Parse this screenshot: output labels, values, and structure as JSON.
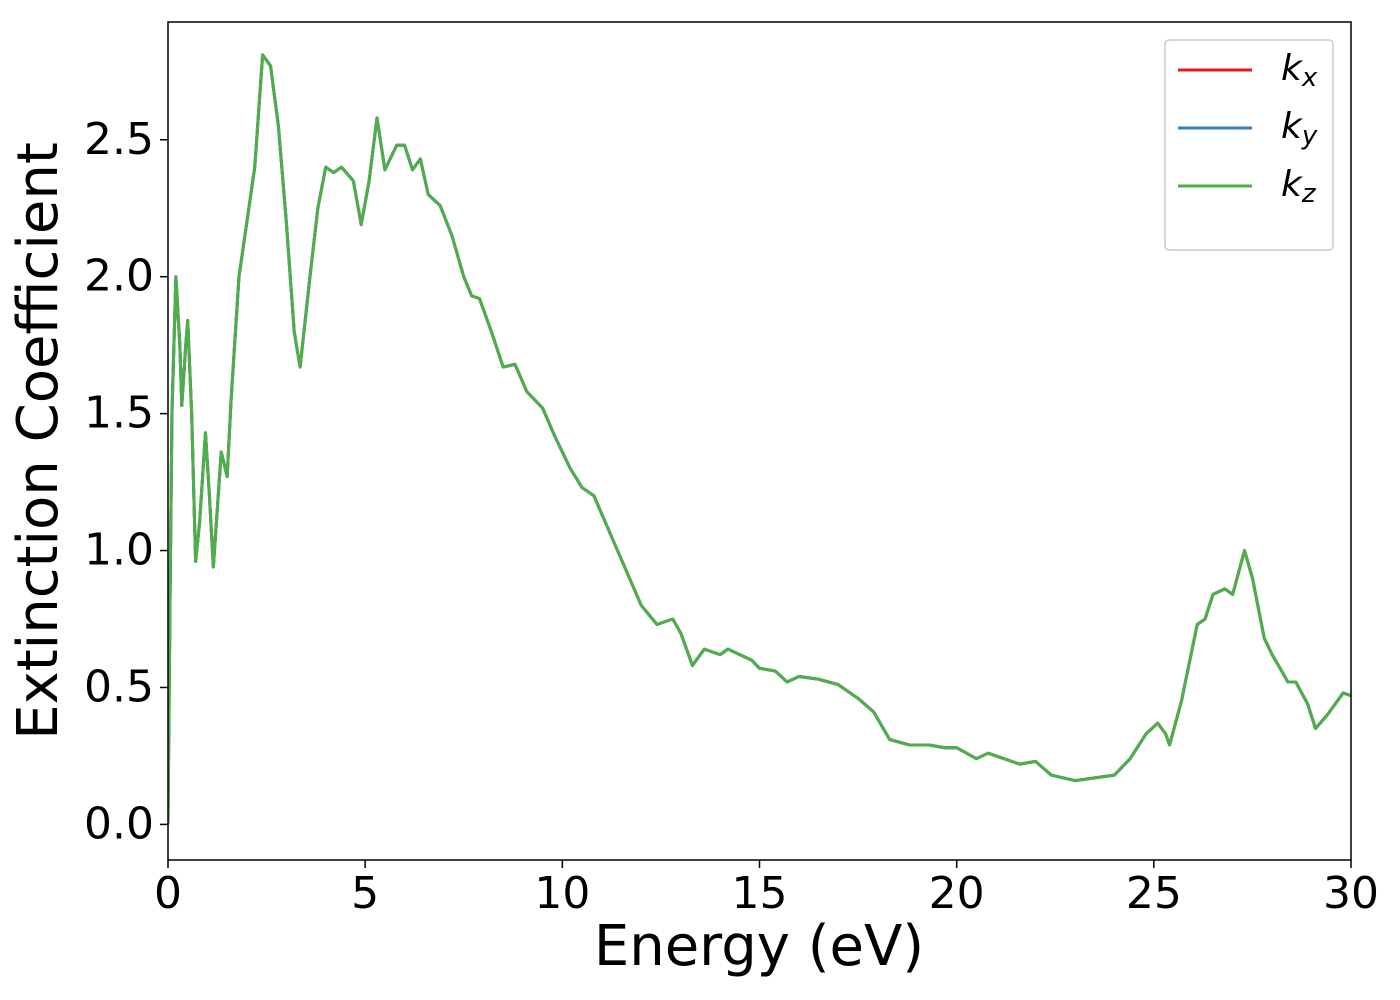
{
  "chart_data": {
    "type": "line",
    "xlabel": "Energy (eV)",
    "ylabel": "Extinction Coefficient",
    "x": [
      0,
      0.05,
      0.1,
      0.2,
      0.3,
      0.35,
      0.45,
      0.5,
      0.6,
      0.7,
      0.8,
      0.95,
      1.05,
      1.15,
      1.25,
      1.35,
      1.5,
      1.6,
      1.8,
      2.0,
      2.2,
      2.4,
      2.6,
      2.8,
      3.0,
      3.2,
      3.35,
      3.6,
      3.8,
      4.0,
      4.2,
      4.4,
      4.7,
      4.9,
      5.1,
      5.3,
      5.5,
      5.8,
      6.0,
      6.2,
      6.4,
      6.6,
      6.9,
      7.2,
      7.5,
      7.7,
      7.9,
      8.2,
      8.5,
      8.8,
      9.1,
      9.5,
      9.8,
      10.2,
      10.5,
      10.8,
      11.1,
      11.4,
      11.7,
      12.0,
      12.4,
      12.8,
      13.0,
      13.3,
      13.6,
      14.0,
      14.2,
      14.8,
      15.0,
      15.4,
      15.7,
      16.0,
      16.5,
      17.0,
      17.5,
      17.9,
      18.3,
      18.8,
      19.3,
      19.7,
      20.0,
      20.5,
      20.8,
      21.2,
      21.6,
      22.0,
      22.4,
      23.0,
      23.5,
      24.0,
      24.4,
      24.8,
      25.1,
      25.3,
      25.4,
      25.7,
      26.1,
      26.3,
      26.5,
      26.8,
      27.0,
      27.3,
      27.5,
      27.8,
      28.0,
      28.2,
      28.4,
      28.6,
      28.9,
      29.1,
      29.4,
      29.8,
      30.0
    ],
    "series": [
      {
        "name": "kx",
        "color": "#e41a1c",
        "values": [
          0,
          0.8,
          1.5,
          2.0,
          1.75,
          1.53,
          1.75,
          1.84,
          1.5,
          0.96,
          1.1,
          1.43,
          1.2,
          0.94,
          1.15,
          1.36,
          1.27,
          1.55,
          2.0,
          2.2,
          2.4,
          2.81,
          2.77,
          2.55,
          2.2,
          1.8,
          1.67,
          2.0,
          2.25,
          2.4,
          2.38,
          2.4,
          2.35,
          2.19,
          2.35,
          2.58,
          2.39,
          2.48,
          2.48,
          2.39,
          2.43,
          2.3,
          2.26,
          2.15,
          2.0,
          1.93,
          1.92,
          1.8,
          1.67,
          1.68,
          1.58,
          1.52,
          1.42,
          1.3,
          1.23,
          1.2,
          1.1,
          1.0,
          0.9,
          0.8,
          0.73,
          0.75,
          0.7,
          0.58,
          0.64,
          0.62,
          0.64,
          0.6,
          0.57,
          0.56,
          0.52,
          0.54,
          0.53,
          0.51,
          0.46,
          0.41,
          0.31,
          0.29,
          0.29,
          0.28,
          0.28,
          0.24,
          0.26,
          0.24,
          0.22,
          0.23,
          0.18,
          0.16,
          0.17,
          0.18,
          0.24,
          0.33,
          0.37,
          0.33,
          0.29,
          0.45,
          0.73,
          0.75,
          0.84,
          0.86,
          0.84,
          1.0,
          0.9,
          0.68,
          0.62,
          0.57,
          0.52,
          0.52,
          0.44,
          0.35,
          0.4,
          0.48,
          0.47
        ]
      },
      {
        "name": "ky",
        "color": "#377eb8",
        "values": [
          0,
          0.8,
          1.5,
          2.0,
          1.75,
          1.53,
          1.75,
          1.84,
          1.5,
          0.96,
          1.1,
          1.43,
          1.2,
          0.94,
          1.15,
          1.36,
          1.27,
          1.55,
          2.0,
          2.2,
          2.4,
          2.81,
          2.77,
          2.55,
          2.2,
          1.8,
          1.67,
          2.0,
          2.25,
          2.4,
          2.38,
          2.4,
          2.35,
          2.19,
          2.35,
          2.58,
          2.39,
          2.48,
          2.48,
          2.39,
          2.43,
          2.3,
          2.26,
          2.15,
          2.0,
          1.93,
          1.92,
          1.8,
          1.67,
          1.68,
          1.58,
          1.52,
          1.42,
          1.3,
          1.23,
          1.2,
          1.1,
          1.0,
          0.9,
          0.8,
          0.73,
          0.75,
          0.7,
          0.58,
          0.64,
          0.62,
          0.64,
          0.6,
          0.57,
          0.56,
          0.52,
          0.54,
          0.53,
          0.51,
          0.46,
          0.41,
          0.31,
          0.29,
          0.29,
          0.28,
          0.28,
          0.24,
          0.26,
          0.24,
          0.22,
          0.23,
          0.18,
          0.16,
          0.17,
          0.18,
          0.24,
          0.33,
          0.37,
          0.33,
          0.29,
          0.45,
          0.73,
          0.75,
          0.84,
          0.86,
          0.84,
          1.0,
          0.9,
          0.68,
          0.62,
          0.57,
          0.52,
          0.52,
          0.44,
          0.35,
          0.4,
          0.48,
          0.47
        ]
      },
      {
        "name": "kz",
        "color": "#4daf4a",
        "values": [
          0,
          0.8,
          1.5,
          2.0,
          1.75,
          1.53,
          1.75,
          1.84,
          1.5,
          0.96,
          1.1,
          1.43,
          1.2,
          0.94,
          1.15,
          1.36,
          1.27,
          1.55,
          2.0,
          2.2,
          2.4,
          2.81,
          2.77,
          2.55,
          2.2,
          1.8,
          1.67,
          2.0,
          2.25,
          2.4,
          2.38,
          2.4,
          2.35,
          2.19,
          2.35,
          2.58,
          2.39,
          2.48,
          2.48,
          2.39,
          2.43,
          2.3,
          2.26,
          2.15,
          2.0,
          1.93,
          1.92,
          1.8,
          1.67,
          1.68,
          1.58,
          1.52,
          1.42,
          1.3,
          1.23,
          1.2,
          1.1,
          1.0,
          0.9,
          0.8,
          0.73,
          0.75,
          0.7,
          0.58,
          0.64,
          0.62,
          0.64,
          0.6,
          0.57,
          0.56,
          0.52,
          0.54,
          0.53,
          0.51,
          0.46,
          0.41,
          0.31,
          0.29,
          0.29,
          0.28,
          0.28,
          0.24,
          0.26,
          0.24,
          0.22,
          0.23,
          0.18,
          0.16,
          0.17,
          0.18,
          0.24,
          0.33,
          0.37,
          0.33,
          0.29,
          0.45,
          0.73,
          0.75,
          0.84,
          0.86,
          0.84,
          1.0,
          0.9,
          0.68,
          0.62,
          0.57,
          0.52,
          0.52,
          0.44,
          0.35,
          0.4,
          0.48,
          0.47
        ]
      }
    ],
    "xlim": [
      0,
      30
    ],
    "xticks": [
      0,
      5,
      10,
      15,
      20,
      25,
      30
    ],
    "ylim": [
      -0.13,
      2.93
    ],
    "yticks": [
      {
        "value": 0,
        "label": "0.0"
      },
      0.5,
      {
        "value": 1,
        "label": "1.0"
      },
      1.5,
      {
        "value": 2,
        "label": "2.0"
      },
      2.5
    ],
    "grid": false,
    "legend": "upper right"
  }
}
